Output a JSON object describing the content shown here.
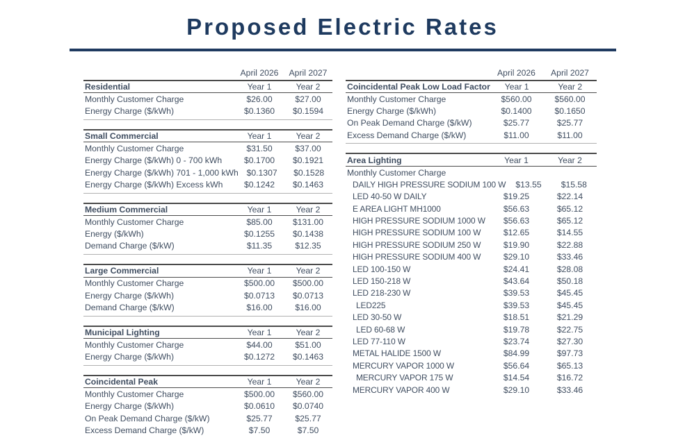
{
  "title": "Proposed Electric Rates",
  "columns_header": {
    "year1_date": "April 2026",
    "year2_date": "April 2027"
  },
  "year_col_labels": [
    "Year 1",
    "Year 2"
  ],
  "left_tables": [
    {
      "name": "Residential",
      "rows": [
        {
          "label": "Monthly Customer Charge",
          "year1": "$26.00",
          "year2": "$27.00"
        },
        {
          "label": "Energy Charge ($/kWh)",
          "year1": "$0.1360",
          "year2": "$0.1594"
        }
      ]
    },
    {
      "name": "Small Commercial",
      "rows": [
        {
          "label": "Monthly Customer Charge",
          "year1": "$31.50",
          "year2": "$37.00"
        },
        {
          "label": "Energy Charge ($/kWh) 0 - 700 kWh",
          "year1": "$0.1700",
          "year2": "$0.1921"
        },
        {
          "label": "Energy Charge ($/kWh) 701 - 1,000 kWh",
          "year1": "$0.1307",
          "year2": "$0.1528"
        },
        {
          "label": "Energy Charge ($/kWh) Excess kWh",
          "year1": "$0.1242",
          "year2": "$0.1463"
        }
      ]
    },
    {
      "name": "Medium Commercial",
      "rows": [
        {
          "label": "Monthly Customer Charge",
          "year1": "$85.00",
          "year2": "$131.00"
        },
        {
          "label": "Energy ($/kWh)",
          "year1": "$0.1255",
          "year2": "$0.1438"
        },
        {
          "label": "Demand Charge ($/kW)",
          "year1": "$11.35",
          "year2": "$12.35"
        }
      ]
    },
    {
      "name": "Large Commercial",
      "rows": [
        {
          "label": "Monthly Customer Charge",
          "year1": "$500.00",
          "year2": "$500.00"
        },
        {
          "label": "Energy Charge ($/kWh)",
          "year1": "$0.0713",
          "year2": "$0.0713"
        },
        {
          "label": "Demand Charge ($/kW)",
          "year1": "$16.00",
          "year2": "$16.00"
        }
      ]
    },
    {
      "name": "Municipal Lighting",
      "rows": [
        {
          "label": "Monthly Customer Charge",
          "year1": "$44.00",
          "year2": "$51.00"
        },
        {
          "label": "Energy Charge ($/kWh)",
          "year1": "$0.1272",
          "year2": "$0.1463"
        }
      ]
    },
    {
      "name": "Coincidental Peak",
      "rows": [
        {
          "label": "Monthly Customer Charge",
          "year1": "$500.00",
          "year2": "$560.00"
        },
        {
          "label": "Energy Charge ($/kWh)",
          "year1": "$0.0610",
          "year2": "$0.0740"
        },
        {
          "label": "On Peak Demand Charge ($/kW)",
          "year1": "$25.77",
          "year2": "$25.77"
        },
        {
          "label": "Excess Demand Charge ($/kW)",
          "year1": "$7.50",
          "year2": "$7.50"
        }
      ]
    }
  ],
  "right_tables": [
    {
      "name": "Coincidental Peak Low Load Factor",
      "rows": [
        {
          "label": "Monthly Customer Charge",
          "year1": "$560.00",
          "year2": "$560.00"
        },
        {
          "label": "Energy Charge ($/kWh)",
          "year1": "$0.1400",
          "year2": "$0.1650"
        },
        {
          "label": "On Peak Demand Charge ($/kW)",
          "year1": "$25.77",
          "year2": "$25.77"
        },
        {
          "label": "Excess Demand Charge ($/kW)",
          "year1": "$11.00",
          "year2": "$11.00"
        }
      ]
    },
    {
      "name": "Area Lighting",
      "rows": [
        {
          "label": "Monthly Customer Charge",
          "year1": "",
          "year2": ""
        },
        {
          "label": "DAILY HIGH PRESSURE SODIUM 100 W",
          "indent": 1,
          "caps": true,
          "year1": "$13.55",
          "year2": "$15.58"
        },
        {
          "label": "LED 40-50 W DAILY",
          "indent": 1,
          "caps": true,
          "year1": "$19.25",
          "year2": "$22.14"
        },
        {
          "label": "E AREA LIGHT MH1000",
          "indent": 1,
          "caps": true,
          "year1": "$56.63",
          "year2": "$65.12"
        },
        {
          "label": "HIGH PRESSURE SODIUM 1000 W",
          "indent": 1,
          "caps": true,
          "year1": "$56.63",
          "year2": "$65.12"
        },
        {
          "label": "HIGH PRESSURE SODIUM 100 W",
          "indent": 1,
          "caps": true,
          "year1": "$12.65",
          "year2": "$14.55"
        },
        {
          "label": "HIGH PRESSURE SODIUM 250 W",
          "indent": 1,
          "caps": true,
          "year1": "$19.90",
          "year2": "$22.88"
        },
        {
          "label": "HIGH PRESSURE SODIUM 400 W",
          "indent": 1,
          "caps": true,
          "year1": "$29.10",
          "year2": "$33.46"
        },
        {
          "label": "LED 100-150 W",
          "indent": 1,
          "caps": true,
          "year1": "$24.41",
          "year2": "$28.08"
        },
        {
          "label": "LED 150-218 W",
          "indent": 1,
          "caps": true,
          "year1": "$43.64",
          "year2": "$50.18"
        },
        {
          "label": "LED 218-230 W",
          "indent": 1,
          "caps": true,
          "year1": "$39.53",
          "year2": "$45.45"
        },
        {
          "label": "LED225",
          "indent": 2,
          "caps": true,
          "year1": "$39.53",
          "year2": "$45.45"
        },
        {
          "label": "LED 30-50 W",
          "indent": 1,
          "caps": true,
          "year1": "$18.51",
          "year2": "$21.29"
        },
        {
          "label": "LED 60-68 W",
          "indent": 2,
          "caps": true,
          "year1": "$19.78",
          "year2": "$22.75"
        },
        {
          "label": "LED 77-110 W",
          "indent": 1,
          "caps": true,
          "year1": "$23.74",
          "year2": "$27.30"
        },
        {
          "label": "METAL HALIDE 1500 W",
          "indent": 1,
          "caps": true,
          "year1": "$84.99",
          "year2": "$97.73"
        },
        {
          "label": "MERCURY VAPOR 1000 W",
          "indent": 1,
          "caps": true,
          "year1": "$56.64",
          "year2": "$65.13"
        },
        {
          "label": "MERCURY VAPOR 175 W",
          "indent": 2,
          "caps": true,
          "year1": "$14.54",
          "year2": "$16.72"
        },
        {
          "label": "MERCURY VAPOR 400 W",
          "indent": 1,
          "caps": true,
          "year1": "$29.10",
          "year2": "$33.46"
        }
      ]
    }
  ]
}
